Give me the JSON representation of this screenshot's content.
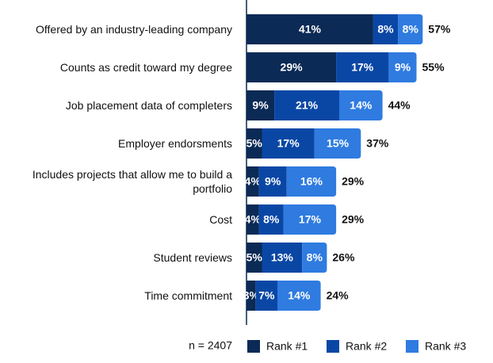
{
  "chart_data": {
    "type": "stacked-bar-horizontal",
    "categories": [
      "Offered by an industry-leading company",
      "Counts as credit toward my degree",
      "Job placement data of completers",
      "Employer endorsments",
      "Includes projects that allow me to build a portfolio",
      "Cost",
      "Student reviews",
      "Time commitment"
    ],
    "series": [
      {
        "name": "Rank #1",
        "color": "#0b2a55",
        "values": [
          41,
          29,
          9,
          5,
          4,
          4,
          5,
          3
        ],
        "value_labels": [
          "41%",
          "29%",
          "9%",
          "5%",
          "4%",
          "4%",
          "5%",
          "3%"
        ]
      },
      {
        "name": "Rank #2",
        "color": "#0a47a5",
        "values": [
          8,
          17,
          21,
          17,
          9,
          8,
          13,
          7
        ],
        "value_labels": [
          "8%",
          "17%",
          "21%",
          "17%",
          "9%",
          "8%",
          "13%",
          "7%"
        ]
      },
      {
        "name": "Rank #3",
        "color": "#2f7be0",
        "values": [
          8,
          9,
          14,
          15,
          16,
          17,
          8,
          14
        ],
        "value_labels": [
          "8%",
          "9%",
          "14%",
          "15%",
          "16%",
          "17%",
          "8%",
          "14%"
        ]
      }
    ],
    "totals": [
      57,
      55,
      44,
      37,
      29,
      29,
      26,
      24
    ],
    "total_labels": [
      "57%",
      "55%",
      "44%",
      "37%",
      "29%",
      "29%",
      "26%",
      "24%"
    ],
    "annotation": "n = 2407"
  }
}
